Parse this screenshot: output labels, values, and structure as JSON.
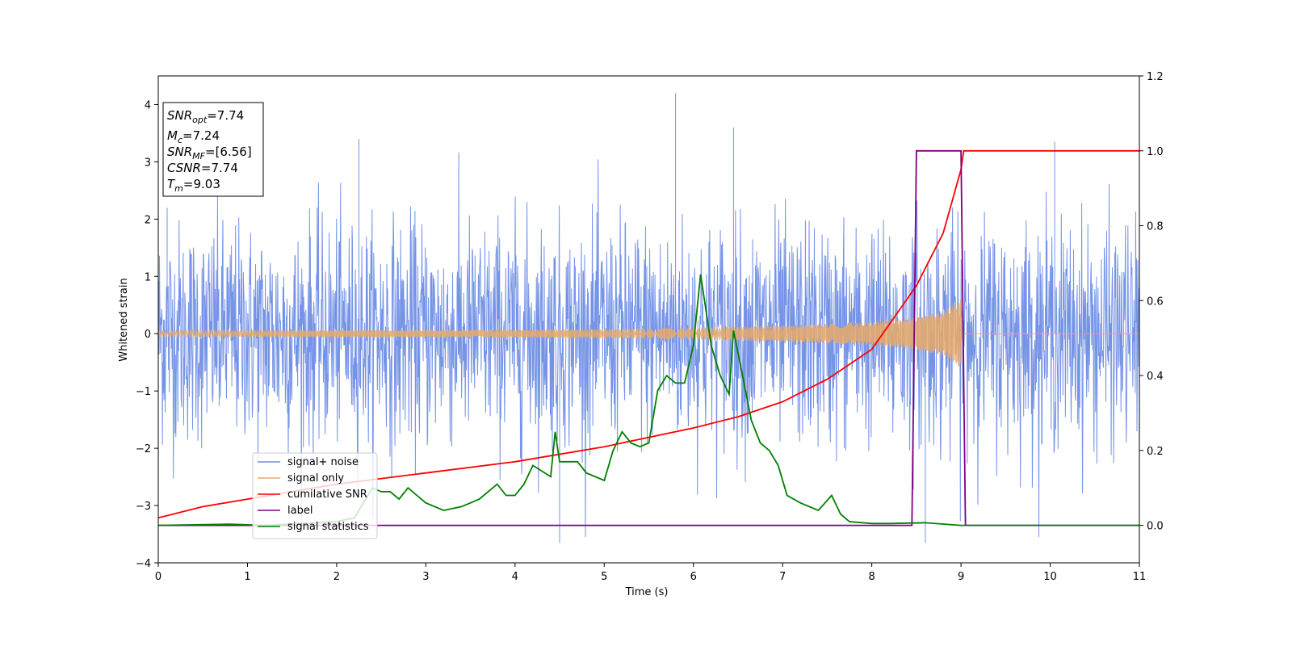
{
  "chart_data": {
    "type": "line",
    "title": "",
    "xlabel": "Time (s)",
    "ylabel": "Whitened strain",
    "xlim": [
      0,
      11
    ],
    "ylim": [
      -4,
      4.5
    ],
    "y2lim": [
      -0.1,
      1.2
    ],
    "x_ticks": [
      "0",
      "1",
      "2",
      "3",
      "4",
      "5",
      "6",
      "7",
      "8",
      "9",
      "10",
      "11"
    ],
    "y_ticks": [
      "−4",
      "−3",
      "−2",
      "−1",
      "0",
      "1",
      "2",
      "3",
      "4"
    ],
    "y2_ticks": [
      "0.0",
      "0.2",
      "0.4",
      "0.6",
      "0.8",
      "1.0",
      "1.2"
    ],
    "grid": false,
    "legend_position": "lower-left",
    "info_box": {
      "snr_opt": {
        "base": "SNR",
        "sub": "opt",
        "value": "=7.74"
      },
      "mc": {
        "base": "M",
        "sub": "c",
        "value": "=7.24"
      },
      "snr_mf": {
        "base": "SNR",
        "sub": "MF",
        "value": "=[6.56]"
      },
      "csnr": {
        "base": "CSNR",
        "sub": "",
        "value": "=7.74"
      },
      "tm": {
        "base": "T",
        "sub": "m",
        "value": "=9.03"
      }
    },
    "series": [
      {
        "name": "signal+ noise",
        "color": "#6f8ee6",
        "axis": "left",
        "description_points": "dense noisy time series, amplitude ~ ±2.5 with spikes to 4.2 at t=5.8 and -3.6 at t=8.6",
        "peaks": [
          [
            0.1,
            2.2
          ],
          [
            2.25,
            3.4
          ],
          [
            5.8,
            4.2
          ],
          [
            6.45,
            3.6
          ],
          [
            10.05,
            3.35
          ],
          [
            4.5,
            -3.65
          ],
          [
            8.6,
            -3.65
          ]
        ]
      },
      {
        "name": "signal only",
        "color": "#e8a968",
        "axis": "left",
        "envelope": [
          [
            0,
            0.05
          ],
          [
            3,
            0.06
          ],
          [
            5,
            0.08
          ],
          [
            6,
            0.1
          ],
          [
            7,
            0.14
          ],
          [
            8,
            0.2
          ],
          [
            8.5,
            0.28
          ],
          [
            8.8,
            0.38
          ],
          [
            9.0,
            0.6
          ],
          [
            9.02,
            0.0
          ],
          [
            11,
            0.0
          ]
        ]
      },
      {
        "name": "cumilative SNR",
        "color": "#ff0000",
        "axis": "right",
        "points": [
          [
            0,
            0.02
          ],
          [
            0.5,
            0.05
          ],
          [
            1,
            0.07
          ],
          [
            2,
            0.11
          ],
          [
            3,
            0.14
          ],
          [
            4,
            0.17
          ],
          [
            5,
            0.21
          ],
          [
            6,
            0.26
          ],
          [
            6.5,
            0.29
          ],
          [
            7,
            0.33
          ],
          [
            7.5,
            0.39
          ],
          [
            8,
            0.47
          ],
          [
            8.5,
            0.64
          ],
          [
            8.8,
            0.78
          ],
          [
            9.0,
            0.95
          ],
          [
            9.03,
            1.0
          ],
          [
            11,
            1.0
          ]
        ]
      },
      {
        "name": "label",
        "color": "#800080",
        "axis": "right",
        "points": [
          [
            0,
            0.0
          ],
          [
            8.45,
            0.0
          ],
          [
            8.5,
            1.0
          ],
          [
            9.0,
            1.0
          ],
          [
            9.05,
            0.0
          ],
          [
            11,
            0.0
          ]
        ]
      },
      {
        "name": "signal statistics",
        "color": "#008000",
        "axis": "right",
        "points": [
          [
            0,
            0.0
          ],
          [
            0.8,
            0.003
          ],
          [
            1.2,
            0.0
          ],
          [
            1.6,
            0.005
          ],
          [
            2.0,
            0.01
          ],
          [
            2.2,
            0.02
          ],
          [
            2.4,
            0.1
          ],
          [
            2.5,
            0.09
          ],
          [
            2.6,
            0.09
          ],
          [
            2.7,
            0.07
          ],
          [
            2.8,
            0.1
          ],
          [
            2.9,
            0.08
          ],
          [
            3.0,
            0.06
          ],
          [
            3.2,
            0.04
          ],
          [
            3.4,
            0.05
          ],
          [
            3.5,
            0.06
          ],
          [
            3.6,
            0.07
          ],
          [
            3.8,
            0.11
          ],
          [
            3.9,
            0.08
          ],
          [
            4.0,
            0.08
          ],
          [
            4.1,
            0.11
          ],
          [
            4.2,
            0.16
          ],
          [
            4.4,
            0.13
          ],
          [
            4.45,
            0.25
          ],
          [
            4.5,
            0.17
          ],
          [
            4.7,
            0.17
          ],
          [
            4.8,
            0.14
          ],
          [
            5.0,
            0.12
          ],
          [
            5.1,
            0.2
          ],
          [
            5.2,
            0.25
          ],
          [
            5.3,
            0.22
          ],
          [
            5.4,
            0.21
          ],
          [
            5.5,
            0.22
          ],
          [
            5.6,
            0.36
          ],
          [
            5.7,
            0.4
          ],
          [
            5.8,
            0.38
          ],
          [
            5.9,
            0.38
          ],
          [
            6.0,
            0.48
          ],
          [
            6.08,
            0.67
          ],
          [
            6.2,
            0.48
          ],
          [
            6.3,
            0.4
          ],
          [
            6.4,
            0.35
          ],
          [
            6.45,
            0.52
          ],
          [
            6.55,
            0.4
          ],
          [
            6.65,
            0.28
          ],
          [
            6.75,
            0.22
          ],
          [
            6.85,
            0.2
          ],
          [
            6.95,
            0.16
          ],
          [
            7.05,
            0.08
          ],
          [
            7.2,
            0.06
          ],
          [
            7.4,
            0.04
          ],
          [
            7.55,
            0.08
          ],
          [
            7.65,
            0.03
          ],
          [
            7.75,
            0.01
          ],
          [
            8.0,
            0.005
          ],
          [
            8.2,
            0.005
          ],
          [
            8.6,
            0.007
          ],
          [
            9.0,
            0.0
          ],
          [
            11,
            0.0
          ]
        ]
      }
    ]
  }
}
